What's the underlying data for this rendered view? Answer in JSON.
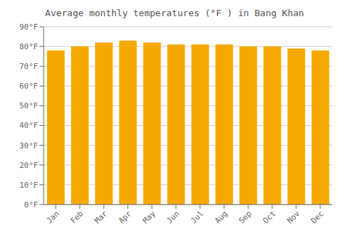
{
  "chart_data": {
    "type": "bar",
    "title": "Average monthly temperatures (°F ) in Bang Khan",
    "categories": [
      "Jan",
      "Feb",
      "Mar",
      "Apr",
      "May",
      "Jun",
      "Jul",
      "Aug",
      "Sep",
      "Oct",
      "Nov",
      "Dec"
    ],
    "values": [
      78,
      80,
      82,
      83,
      82,
      81,
      81,
      81,
      80,
      80,
      79,
      78
    ],
    "color": "#F5A800",
    "ylim": [
      0,
      90
    ],
    "yticks": [
      {
        "value": 0,
        "label": "0°F"
      },
      {
        "value": 10,
        "label": "10°F"
      },
      {
        "value": 20,
        "label": "20°F"
      },
      {
        "value": 30,
        "label": "30°F"
      },
      {
        "value": 40,
        "label": "40°F"
      },
      {
        "value": 50,
        "label": "50°F"
      },
      {
        "value": 60,
        "label": "60°F"
      },
      {
        "value": 70,
        "label": "70°F"
      },
      {
        "value": 80,
        "label": "80°F"
      },
      {
        "value": 90,
        "label": "90°F"
      }
    ],
    "grid": true
  }
}
